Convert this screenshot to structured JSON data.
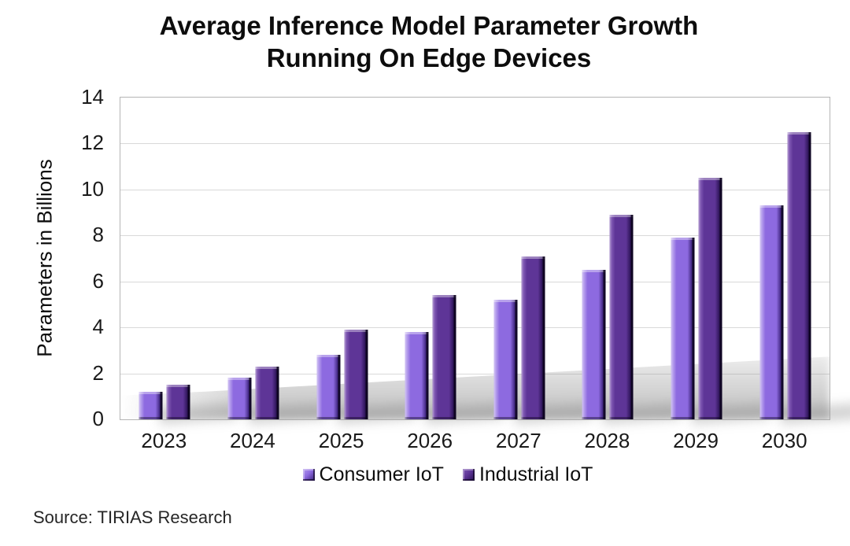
{
  "chart_data": {
    "type": "bar",
    "title": "Average Inference Model Parameter Growth Running On Edge Devices",
    "title_lines": [
      "Average Inference Model Parameter Growth",
      "Running On Edge Devices"
    ],
    "ylabel": "Parameters in Billions",
    "xlabel": "",
    "ylim": [
      0,
      14
    ],
    "yticks": [
      0,
      2,
      4,
      6,
      8,
      10,
      12,
      14
    ],
    "grid": true,
    "legend_position": "bottom",
    "categories": [
      "2023",
      "2024",
      "2025",
      "2026",
      "2027",
      "2028",
      "2029",
      "2030"
    ],
    "series": [
      {
        "name": "Consumer IoT",
        "face": "#8d6ae0",
        "bevel_light": "#b39bec",
        "bevel_dark": "#3a2178",
        "values": [
          1.2,
          1.8,
          2.8,
          3.8,
          5.2,
          6.5,
          7.9,
          9.3
        ]
      },
      {
        "name": "Industrial IoT",
        "face": "#5e3597",
        "bevel_light": "#7e57b2",
        "bevel_dark": "#2a1254",
        "values": [
          1.5,
          2.3,
          3.9,
          5.4,
          7.1,
          8.9,
          10.5,
          12.5
        ]
      }
    ],
    "gridline_color": "#d9d9d9",
    "axis_color": "#b5b5b5",
    "source": "Source: TIRIAS Research"
  }
}
